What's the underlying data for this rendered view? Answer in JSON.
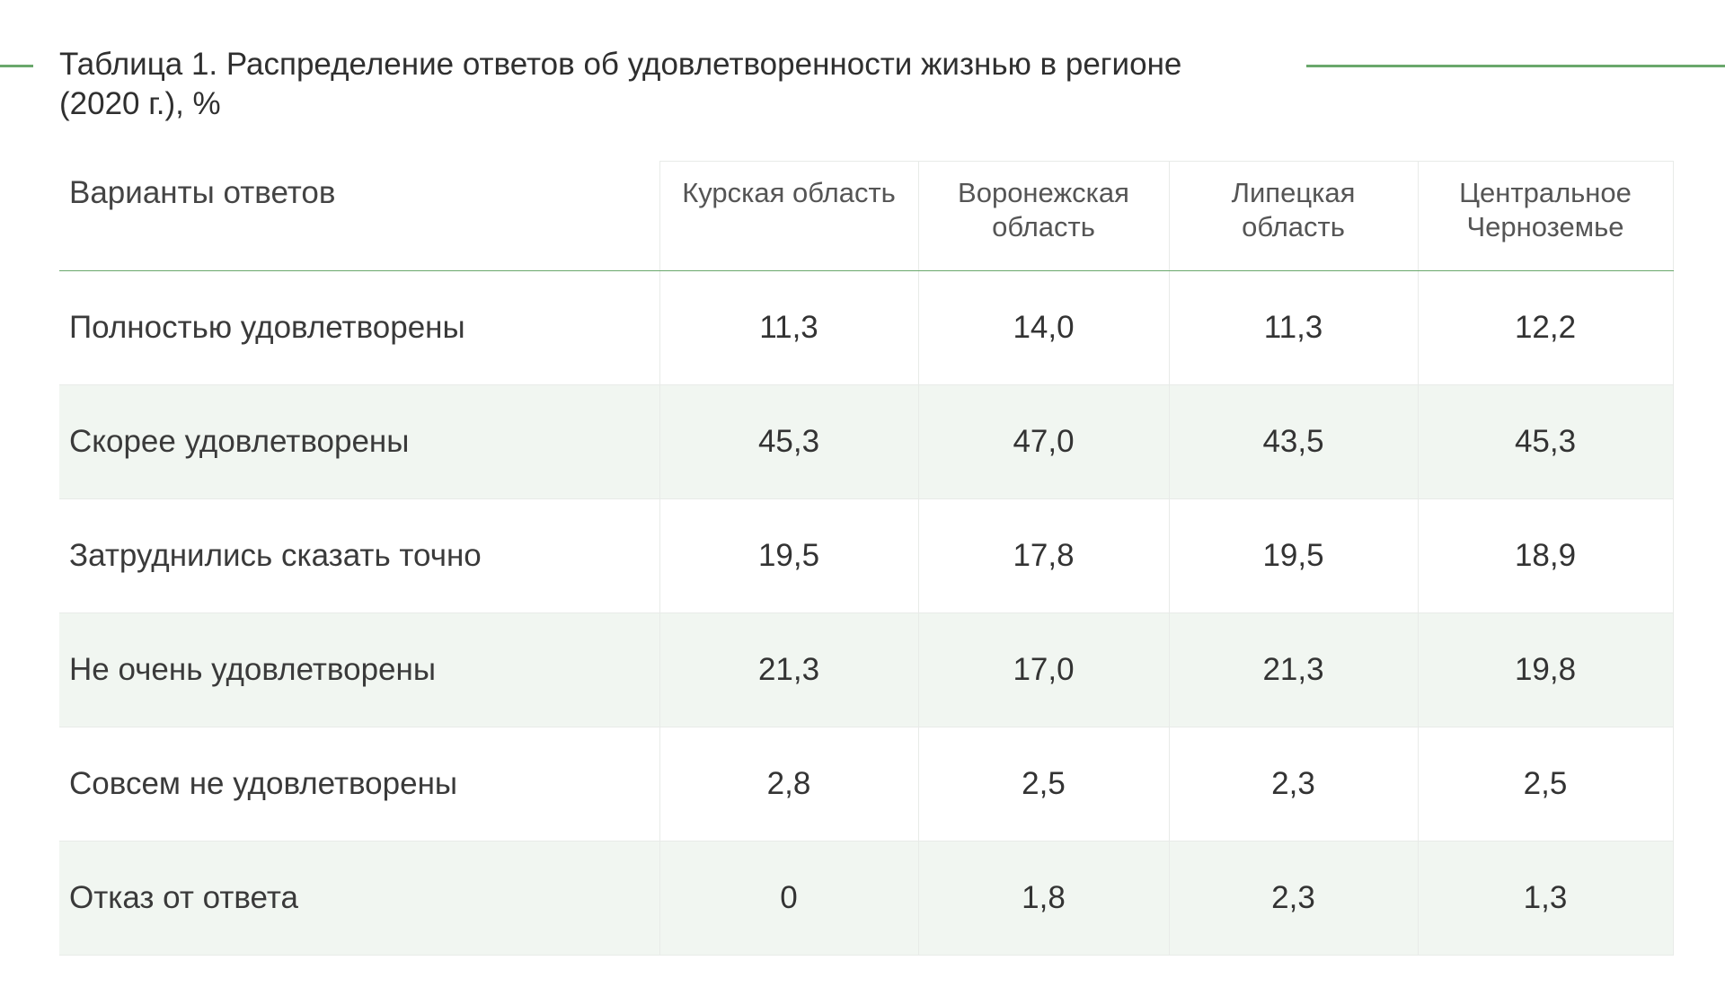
{
  "caption": "Таблица 1. Распределение ответов об удовлетворенности жизнью в регионе (2020 г.), %",
  "table": {
    "headers": [
      "Варианты ответов",
      "Курская область",
      "Воронежская область",
      "Липецкая область",
      "Центральное Черноземье"
    ],
    "rows": [
      {
        "label": "Полностью удовлетворены",
        "values": [
          "11,3",
          "14,0",
          "11,3",
          "12,2"
        ]
      },
      {
        "label": "Скорее удовлетворены",
        "values": [
          "45,3",
          "47,0",
          "43,5",
          "45,3"
        ]
      },
      {
        "label": "Затруднились сказать точно",
        "values": [
          "19,5",
          "17,8",
          "19,5",
          "18,9"
        ]
      },
      {
        "label": "Не очень удовлетворены",
        "values": [
          "21,3",
          "17,0",
          "21,3",
          "19,8"
        ]
      },
      {
        "label": "Совсем не удовлетворены",
        "values": [
          "2,8",
          "2,5",
          "2,3",
          "2,5"
        ]
      },
      {
        "label": "Отказ от ответа",
        "values": [
          "0",
          "1,8",
          "2,3",
          "1,3"
        ]
      }
    ]
  },
  "colors": {
    "accent_rule": "#6aa86c",
    "shaded_row": "#f1f6f1",
    "grid": "#e8ebe8"
  }
}
